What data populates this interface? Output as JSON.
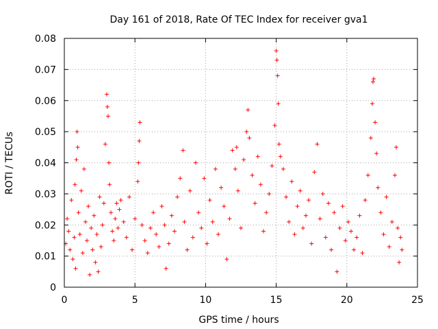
{
  "chart_data": {
    "type": "scatter",
    "title": "Day 161 of 2018, Rate Of TEC Index for receiver gva1",
    "xlabel": "GPS time / hours",
    "ylabel": "ROTI / TECUs",
    "xlim": [
      0,
      25
    ],
    "ylim": [
      0,
      0.08
    ],
    "xticks": [
      "0",
      "5",
      "10",
      "15",
      "20",
      "25"
    ],
    "yticks": [
      "0",
      "0.01",
      "0.02",
      "0.03",
      "0.04",
      "0.05",
      "0.06",
      "0.07",
      "0.08"
    ],
    "grid": true,
    "marker": "+",
    "color": "#ff0000",
    "series": [
      {
        "points": [
          [
            0.1,
            0.014
          ],
          [
            0.2,
            0.022
          ],
          [
            0.3,
            0.018
          ],
          [
            0.4,
            0.012
          ],
          [
            0.5,
            0.028
          ],
          [
            0.6,
            0.009
          ],
          [
            0.7,
            0.016
          ],
          [
            0.75,
            0.033
          ],
          [
            0.8,
            0.006
          ],
          [
            0.85,
            0.041
          ],
          [
            0.9,
            0.05
          ],
          [
            0.95,
            0.045
          ],
          [
            1.0,
            0.024
          ],
          [
            1.1,
            0.017
          ],
          [
            1.2,
            0.031
          ],
          [
            1.3,
            0.011
          ],
          [
            1.4,
            0.038
          ],
          [
            1.5,
            0.021
          ],
          [
            1.6,
            0.015
          ],
          [
            1.7,
            0.026
          ],
          [
            1.8,
            0.004
          ],
          [
            1.9,
            0.019
          ],
          [
            2.0,
            0.012
          ],
          [
            2.1,
            0.023
          ],
          [
            2.2,
            0.008
          ],
          [
            2.3,
            0.017
          ],
          [
            2.4,
            0.005
          ],
          [
            2.5,
            0.029
          ],
          [
            2.6,
            0.013
          ],
          [
            2.7,
            0.02
          ],
          [
            2.8,
            0.027
          ],
          [
            2.9,
            0.046
          ],
          [
            3.0,
            0.062
          ],
          [
            3.05,
            0.058
          ],
          [
            3.1,
            0.055
          ],
          [
            3.15,
            0.04
          ],
          [
            3.2,
            0.033
          ],
          [
            3.3,
            0.024
          ],
          [
            3.4,
            0.018
          ],
          [
            3.5,
            0.015
          ],
          [
            3.6,
            0.022
          ],
          [
            3.7,
            0.027
          ],
          [
            3.8,
            0.019
          ],
          [
            3.9,
            0.025
          ],
          [
            4.0,
            0.028
          ],
          [
            4.2,
            0.021
          ],
          [
            4.4,
            0.016
          ],
          [
            4.6,
            0.029
          ],
          [
            4.8,
            0.012
          ],
          [
            5.0,
            0.022
          ],
          [
            5.2,
            0.034
          ],
          [
            5.25,
            0.04
          ],
          [
            5.3,
            0.047
          ],
          [
            5.35,
            0.053
          ],
          [
            5.5,
            0.02
          ],
          [
            5.7,
            0.015
          ],
          [
            5.9,
            0.011
          ],
          [
            6.1,
            0.019
          ],
          [
            6.3,
            0.024
          ],
          [
            6.5,
            0.017
          ],
          [
            6.7,
            0.013
          ],
          [
            6.9,
            0.026
          ],
          [
            7.1,
            0.02
          ],
          [
            7.2,
            0.006
          ],
          [
            7.4,
            0.014
          ],
          [
            7.6,
            0.023
          ],
          [
            7.8,
            0.018
          ],
          [
            8.0,
            0.029
          ],
          [
            8.2,
            0.035
          ],
          [
            8.4,
            0.044
          ],
          [
            8.5,
            0.021
          ],
          [
            8.7,
            0.012
          ],
          [
            8.9,
            0.031
          ],
          [
            9.1,
            0.016
          ],
          [
            9.3,
            0.04
          ],
          [
            9.5,
            0.024
          ],
          [
            9.7,
            0.019
          ],
          [
            9.9,
            0.035
          ],
          [
            10.1,
            0.014
          ],
          [
            10.3,
            0.028
          ],
          [
            10.5,
            0.021
          ],
          [
            10.7,
            0.038
          ],
          [
            10.9,
            0.017
          ],
          [
            11.1,
            0.032
          ],
          [
            11.3,
            0.026
          ],
          [
            11.5,
            0.009
          ],
          [
            11.7,
            0.022
          ],
          [
            11.9,
            0.044
          ],
          [
            12.1,
            0.038
          ],
          [
            12.2,
            0.045
          ],
          [
            12.3,
            0.031
          ],
          [
            12.5,
            0.019
          ],
          [
            12.7,
            0.041
          ],
          [
            12.9,
            0.05
          ],
          [
            13.0,
            0.057
          ],
          [
            13.1,
            0.048
          ],
          [
            13.3,
            0.036
          ],
          [
            13.5,
            0.027
          ],
          [
            13.7,
            0.042
          ],
          [
            13.9,
            0.033
          ],
          [
            14.1,
            0.018
          ],
          [
            14.3,
            0.024
          ],
          [
            14.5,
            0.03
          ],
          [
            14.7,
            0.039
          ],
          [
            14.9,
            0.052
          ],
          [
            15.0,
            0.076
          ],
          [
            15.05,
            0.073
          ],
          [
            15.1,
            0.068
          ],
          [
            15.15,
            0.059
          ],
          [
            15.2,
            0.046
          ],
          [
            15.3,
            0.042
          ],
          [
            15.5,
            0.038
          ],
          [
            15.7,
            0.029
          ],
          [
            15.9,
            0.021
          ],
          [
            16.1,
            0.034
          ],
          [
            16.3,
            0.017
          ],
          [
            16.5,
            0.026
          ],
          [
            16.7,
            0.031
          ],
          [
            16.9,
            0.019
          ],
          [
            17.1,
            0.023
          ],
          [
            17.3,
            0.028
          ],
          [
            17.5,
            0.014
          ],
          [
            17.7,
            0.037
          ],
          [
            17.9,
            0.046
          ],
          [
            18.1,
            0.022
          ],
          [
            18.3,
            0.03
          ],
          [
            18.5,
            0.016
          ],
          [
            18.7,
            0.027
          ],
          [
            18.9,
            0.012
          ],
          [
            19.1,
            0.024
          ],
          [
            19.3,
            0.005
          ],
          [
            19.5,
            0.019
          ],
          [
            19.7,
            0.026
          ],
          [
            19.9,
            0.015
          ],
          [
            20.1,
            0.021
          ],
          [
            20.3,
            0.018
          ],
          [
            20.5,
            0.012
          ],
          [
            20.7,
            0.016
          ],
          [
            20.9,
            0.023
          ],
          [
            21.1,
            0.011
          ],
          [
            21.3,
            0.028
          ],
          [
            21.5,
            0.036
          ],
          [
            21.7,
            0.048
          ],
          [
            21.8,
            0.059
          ],
          [
            21.85,
            0.066
          ],
          [
            21.9,
            0.067
          ],
          [
            22.0,
            0.053
          ],
          [
            22.1,
            0.043
          ],
          [
            22.2,
            0.032
          ],
          [
            22.4,
            0.024
          ],
          [
            22.6,
            0.017
          ],
          [
            22.8,
            0.029
          ],
          [
            23.0,
            0.013
          ],
          [
            23.2,
            0.021
          ],
          [
            23.4,
            0.036
          ],
          [
            23.5,
            0.045
          ],
          [
            23.6,
            0.019
          ],
          [
            23.7,
            0.008
          ],
          [
            23.8,
            0.016
          ],
          [
            23.9,
            0.012
          ]
        ]
      }
    ]
  }
}
